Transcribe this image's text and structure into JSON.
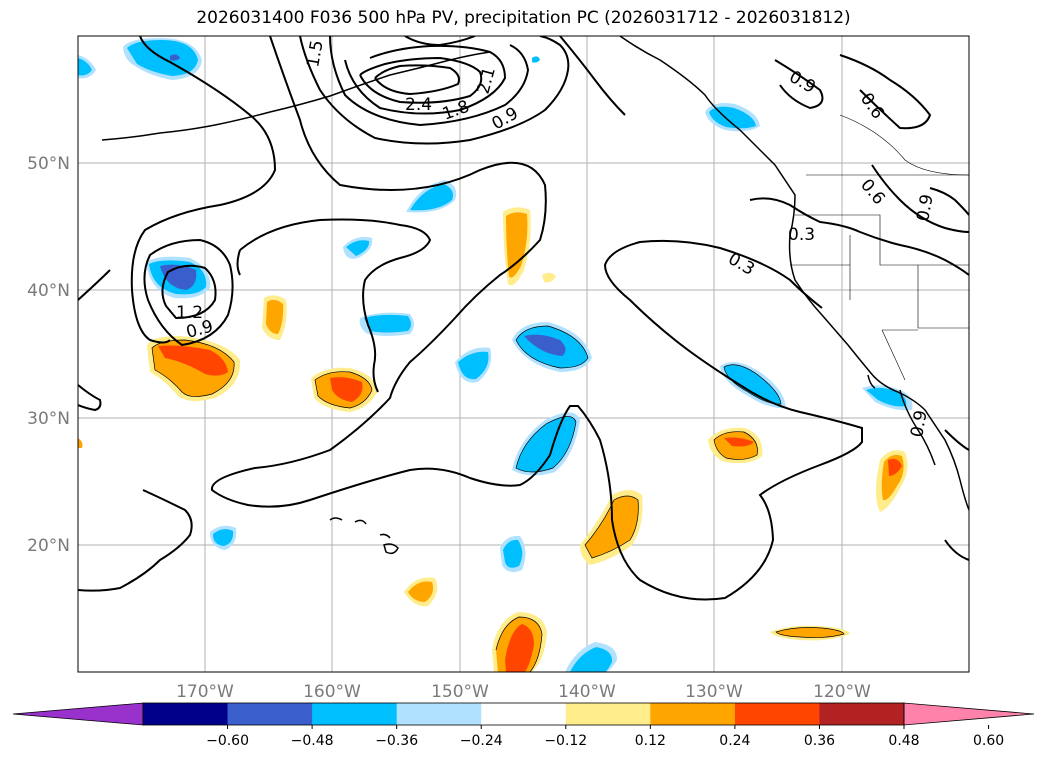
{
  "title": "2026031400 F036 500 hPa PV, precipitation PC (2026031712 - 2026031812)",
  "lat_labels": [
    "50°N",
    "40°N",
    "30°N",
    "20°N"
  ],
  "lon_labels": [
    "170°W",
    "160°W",
    "150°W",
    "140°W",
    "130°W",
    "120°W"
  ],
  "contour_labels": [
    "2.4",
    "1.8",
    "2.1",
    "0.9",
    "1.5",
    "1.2",
    "0.9",
    "0.9",
    "0.6",
    "0.6",
    "0.9",
    "0.3",
    "0.3",
    "0.9"
  ],
  "colorbar": {
    "ticks": [
      "−0.60",
      "−0.48",
      "−0.36",
      "−0.24",
      "−0.12",
      "0.12",
      "0.24",
      "0.36",
      "0.48",
      "0.60"
    ],
    "colors": [
      "#9932cc",
      "#00008b",
      "#3a5fcd",
      "#00bfff",
      "#b0e2ff",
      "#ffffff",
      "#ffec8b",
      "#ffa500",
      "#ff4500",
      "#b22222",
      "#ff82ab"
    ]
  }
}
